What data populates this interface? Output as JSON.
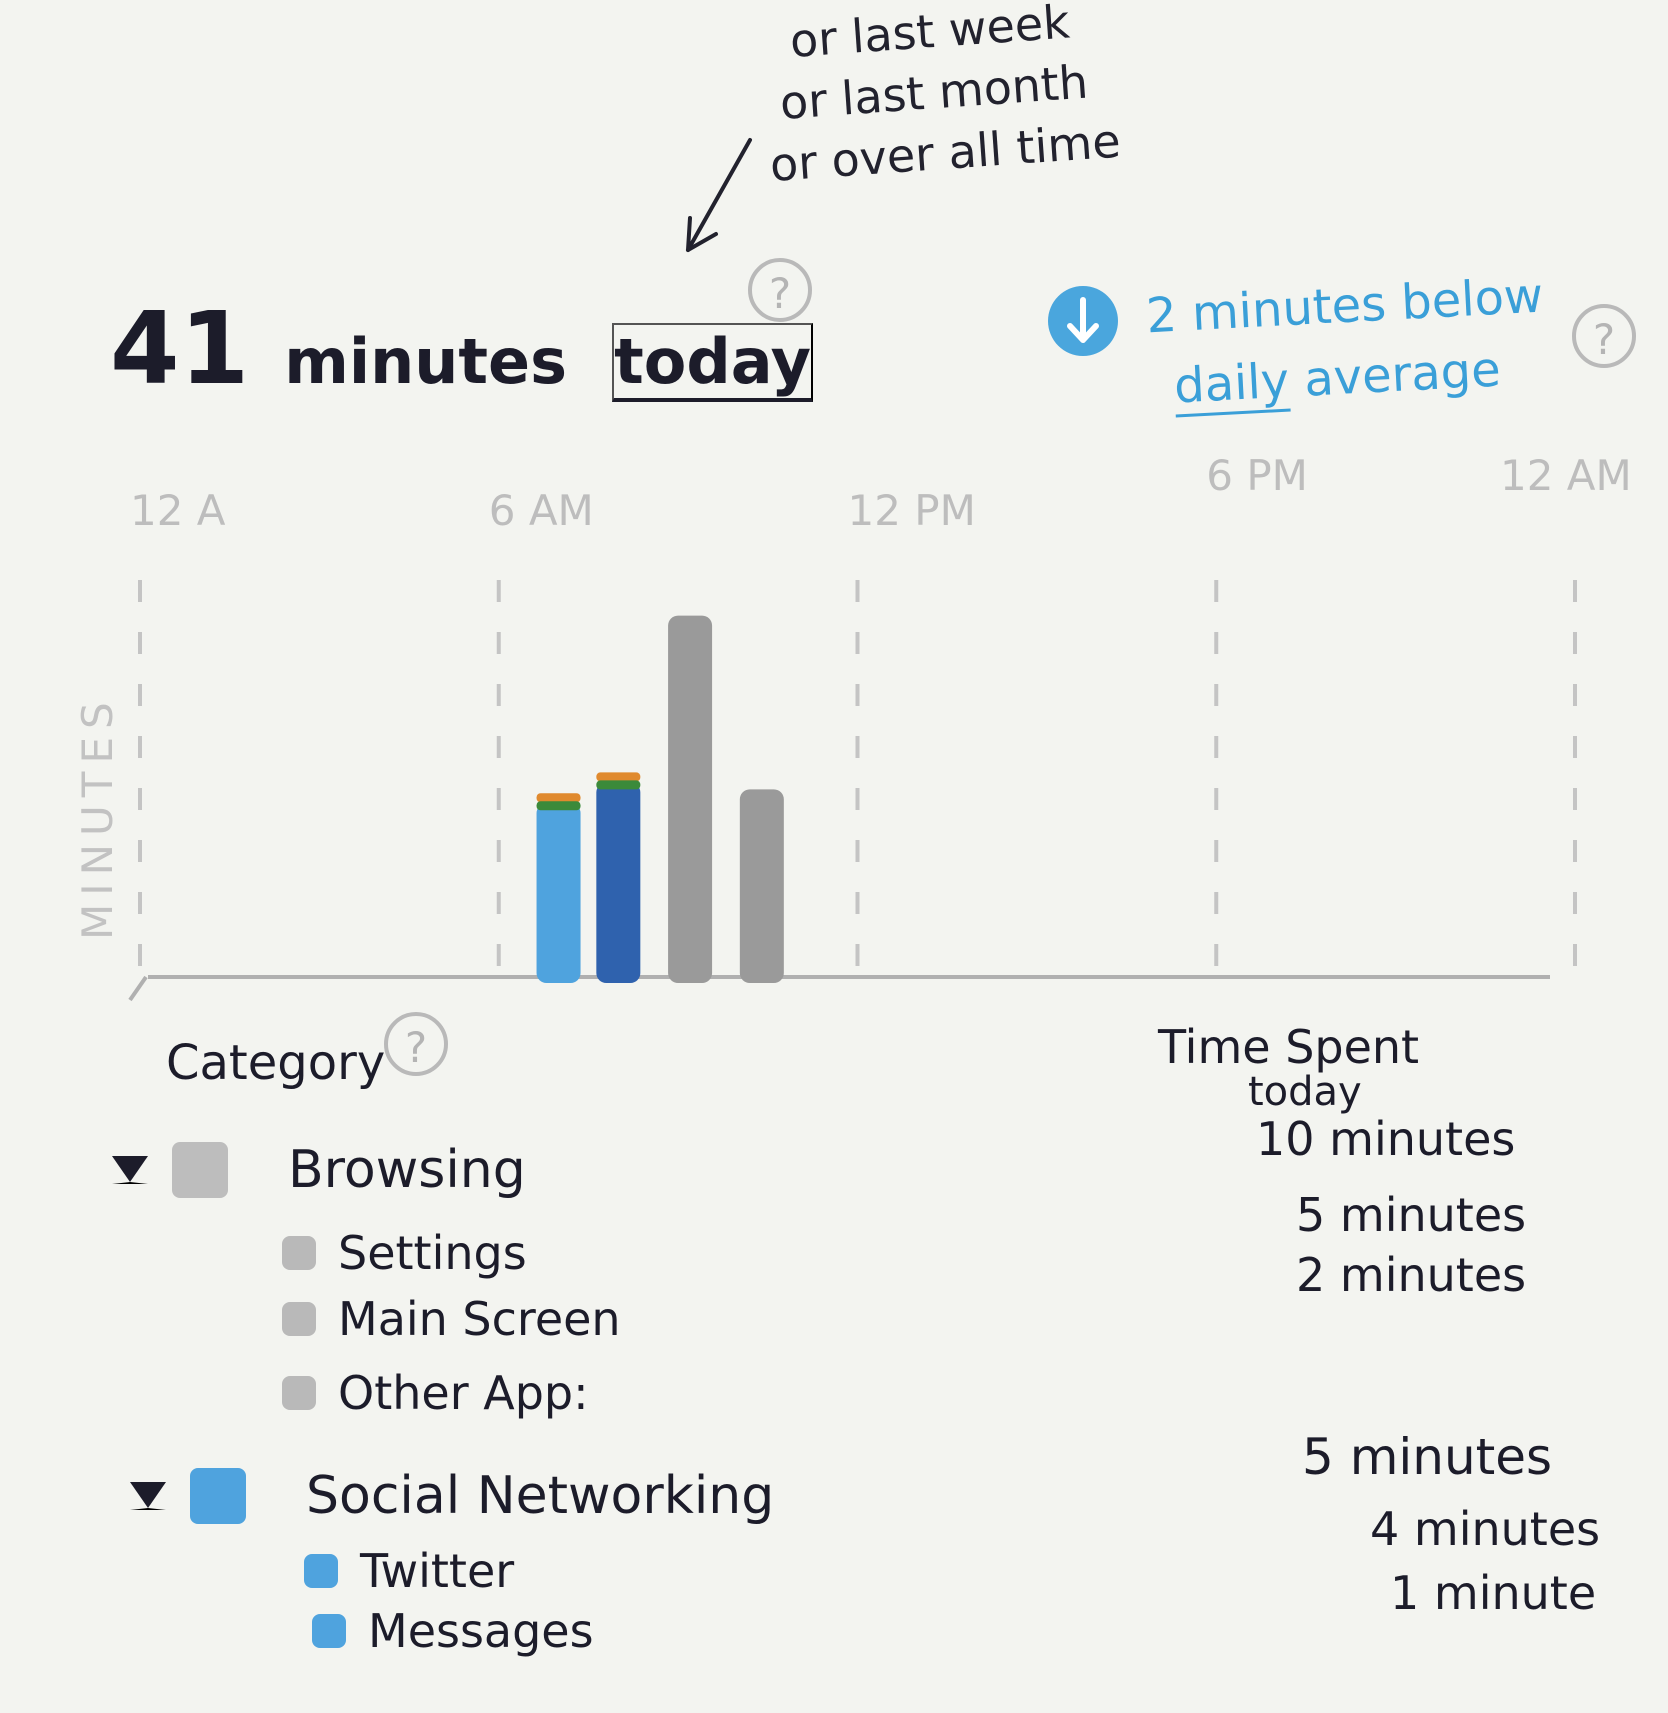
{
  "header": {
    "alt_periods": [
      "or last week",
      "or last month",
      "or over all time"
    ],
    "total_value": "41",
    "total_unit": "minutes",
    "period_label": "today",
    "help_glyph": "?",
    "help_icon": "question-circle-icon"
  },
  "comparison": {
    "icon": "arrow-down-circle-icon",
    "line1": "2 minutes below",
    "underlined_word": "daily",
    "line2_rest": "average",
    "help_glyph": "?"
  },
  "chart_data": {
    "type": "bar",
    "ylabel": "MINUTES",
    "x_ticks": [
      "12 A",
      "6 AM",
      "12 PM",
      "6 PM",
      "12 AM"
    ],
    "bars": [
      {
        "hour": 7.0,
        "category": "Social Networking",
        "minutes": 5,
        "color": "#4fa3de"
      },
      {
        "hour": 8.0,
        "category": "Social Networking",
        "minutes": 5.6,
        "color": "#2f62ae"
      },
      {
        "hour": 9.2,
        "category": "Browsing",
        "minutes": 10.4,
        "color": "#9a9a9a"
      },
      {
        "hour": 10.4,
        "category": "Browsing",
        "minutes": 5.4,
        "color": "#9a9a9a"
      }
    ],
    "ylim": [
      0,
      12
    ],
    "xlim": [
      0,
      24
    ]
  },
  "categories": {
    "title": "Category",
    "help_glyph": "?",
    "time_header_line1": "Time Spent",
    "time_header_line2": "today",
    "groups": [
      {
        "name": "Browsing",
        "color": "#bdbdbd",
        "apps": [
          {
            "name": "Settings",
            "time": "10 minutes",
            "color": "#b9b9b9"
          },
          {
            "name": "Main Screen",
            "time": "5 minutes",
            "color": "#b9b9b9"
          },
          {
            "name": "Other App:",
            "time": "2 minutes",
            "color": "#b9b9b9"
          }
        ]
      },
      {
        "name": "Social Networking",
        "color": "#4fa3de",
        "time": "5 minutes",
        "apps": [
          {
            "name": "Twitter",
            "time": "4 minutes",
            "color": "#4fa3de"
          },
          {
            "name": "Messages",
            "time": "1 minute",
            "color": "#4fa3de"
          }
        ]
      }
    ]
  }
}
